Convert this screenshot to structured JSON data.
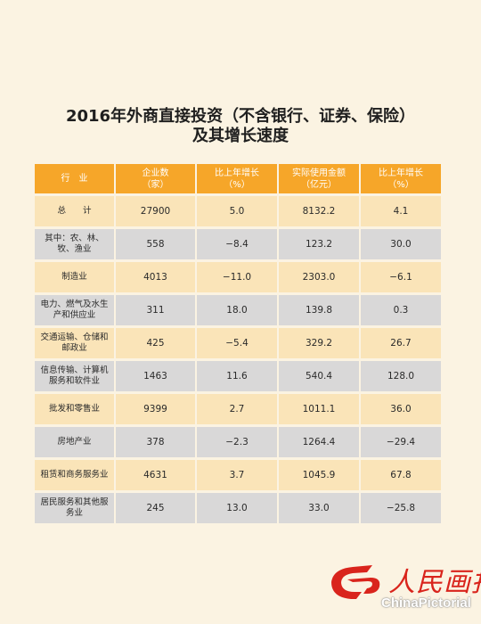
{
  "title": {
    "line1": "2016年外商直接投资（不含银行、证券、保险）",
    "line2": "及其增长速度"
  },
  "table": {
    "headers": [
      "行　业",
      "企业数\n（家）",
      "比上年增长\n（%）",
      "实际使用金额\n（亿元）",
      "比上年增长\n（%）"
    ],
    "rows": [
      [
        "总　　计",
        "27900",
        "5.0",
        "8132.2",
        "4.1"
      ],
      [
        "其中：农、林、\n牧、渔业",
        "558",
        "−8.4",
        "123.2",
        "30.0"
      ],
      [
        "制造业",
        "4013",
        "−11.0",
        "2303.0",
        "−6.1"
      ],
      [
        "电力、燃气及水生\n产和供应业",
        "311",
        "18.0",
        "139.8",
        "0.3"
      ],
      [
        "交通运输、仓储和\n邮政业",
        "425",
        "−5.4",
        "329.2",
        "26.7"
      ],
      [
        "信息传输、计算机\n服务和软件业",
        "1463",
        "11.6",
        "540.4",
        "128.0"
      ],
      [
        "批发和零售业",
        "9399",
        "2.7",
        "1011.1",
        "36.0"
      ],
      [
        "房地产业",
        "378",
        "−2.3",
        "1264.4",
        "−29.4"
      ],
      [
        "租赁和商务服务业",
        "4631",
        "3.7",
        "1045.9",
        "67.8"
      ],
      [
        "居民服务和其他服\n务业",
        "245",
        "13.0",
        "33.0",
        "−25.8"
      ]
    ]
  },
  "logo": {
    "cn": "人民画报",
    "en": "ChinaPictorial"
  },
  "colors": {
    "background": "#fbf3e2",
    "header": "#f6a629",
    "row_light": "#fae4b8",
    "row_gray": "#d9d8d8",
    "logo_red": "#d9241c"
  }
}
